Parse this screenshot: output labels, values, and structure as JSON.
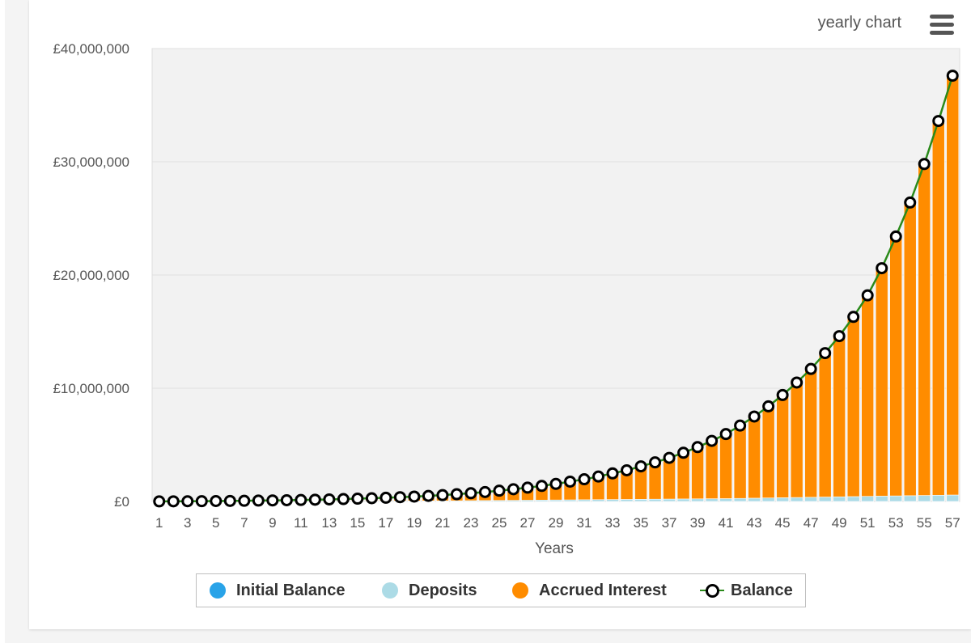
{
  "header": {
    "title": "yearly chart",
    "menu_icon": "hamburger-menu-icon"
  },
  "colors": {
    "initial_balance": "#29a3e8",
    "deposits": "#acdbe6",
    "accrued_interest": "#ff8c00",
    "balance_line": "#2a8a1a",
    "balance_marker": "#000000"
  },
  "chart_data": {
    "type": "bar",
    "stacked": true,
    "xlabel": "Years",
    "ylabel": "",
    "ylim": [
      0,
      40000000
    ],
    "yticks": [
      0,
      10000000,
      20000000,
      30000000,
      40000000
    ],
    "ytick_labels": [
      "£0",
      "£10,000,000",
      "£20,000,000",
      "£30,000,000",
      "£40,000,000"
    ],
    "x": [
      1,
      2,
      3,
      4,
      5,
      6,
      7,
      8,
      9,
      10,
      11,
      12,
      13,
      14,
      15,
      16,
      17,
      18,
      19,
      20,
      21,
      22,
      23,
      24,
      25,
      26,
      27,
      28,
      29,
      30,
      31,
      32,
      33,
      34,
      35,
      36,
      37,
      38,
      39,
      40,
      41,
      42,
      43,
      44,
      45,
      46,
      47,
      48,
      49,
      50,
      51,
      52,
      53,
      54,
      55,
      56,
      57
    ],
    "xtick_labels": [
      "1",
      "3",
      "5",
      "7",
      "9",
      "11",
      "13",
      "15",
      "17",
      "19",
      "21",
      "23",
      "25",
      "27",
      "29",
      "31",
      "33",
      "35",
      "37",
      "39",
      "41",
      "43",
      "45",
      "47",
      "49",
      "51",
      "53",
      "55",
      "57"
    ],
    "grid": true,
    "legend_position": "bottom",
    "series": [
      {
        "name": "Initial Balance",
        "type": "bar",
        "values": [
          1000,
          1000,
          1000,
          1000,
          1000,
          1000,
          1000,
          1000,
          1000,
          1000,
          1000,
          1000,
          1000,
          1000,
          1000,
          1000,
          1000,
          1000,
          1000,
          1000,
          1000,
          1000,
          1000,
          1000,
          1000,
          1000,
          1000,
          1000,
          1000,
          1000,
          1000,
          1000,
          1000,
          1000,
          1000,
          1000,
          1000,
          1000,
          1000,
          1000,
          1000,
          1000,
          1000,
          1000,
          1000,
          1000,
          1000,
          1000,
          1000,
          1000,
          1000,
          1000,
          1000,
          1000,
          1000,
          1000,
          1000
        ]
      },
      {
        "name": "Deposits",
        "type": "bar",
        "values": [
          2500,
          5000,
          7500,
          10000,
          12500,
          15000,
          17500,
          20000,
          22500,
          25000,
          27500,
          30000,
          32500,
          35000,
          37500,
          40000,
          42500,
          45000,
          47500,
          50000,
          55000,
          60000,
          70000,
          80000,
          90000,
          100000,
          110000,
          120000,
          130000,
          140000,
          150000,
          160000,
          170000,
          180000,
          190000,
          200000,
          210000,
          220000,
          230000,
          240000,
          250000,
          270000,
          290000,
          310000,
          330000,
          350000,
          370000,
          390000,
          410000,
          430000,
          450000,
          470000,
          490000,
          510000,
          530000,
          550000,
          570000
        ]
      },
      {
        "name": "Accrued Interest",
        "type": "bar",
        "values": [
          1500,
          5000,
          9500,
          15000,
          22500,
          31000,
          41500,
          55000,
          67500,
          85000,
          102500,
          125000,
          147500,
          175000,
          207500,
          245000,
          282500,
          330000,
          382500,
          440000,
          505000,
          580000,
          660000,
          750000,
          860000,
          980000,
          1110000,
          1250000,
          1420000,
          1610000,
          1810000,
          2040000,
          2310000,
          2570000,
          2910000,
          3250000,
          3640000,
          4080000,
          4570000,
          5110000,
          5700000,
          6430000,
          7210000,
          8090000,
          9070000,
          10150000,
          11330000,
          12710000,
          14190000,
          15870000,
          17750000,
          20130000,
          22910000,
          25890000,
          29270000,
          33050000,
          37030000
        ]
      },
      {
        "name": "Balance",
        "type": "line",
        "values": [
          5000,
          11000,
          18000,
          26000,
          36000,
          47000,
          60000,
          76000,
          91000,
          111000,
          131000,
          156000,
          181000,
          211000,
          246000,
          286000,
          326000,
          376000,
          431000,
          491000,
          561000,
          641000,
          731000,
          831000,
          951000,
          1081000,
          1221000,
          1371000,
          1551000,
          1751000,
          1961000,
          2201000,
          2481000,
          2751000,
          3101000,
          3451000,
          3851000,
          4301000,
          4801000,
          5351000,
          5951000,
          6701000,
          7501000,
          8401000,
          9401000,
          10501000,
          11701000,
          13101000,
          14601000,
          16301000,
          18201000,
          20601000,
          23401000,
          26401000,
          29801000,
          33601000,
          37601000
        ]
      }
    ]
  }
}
